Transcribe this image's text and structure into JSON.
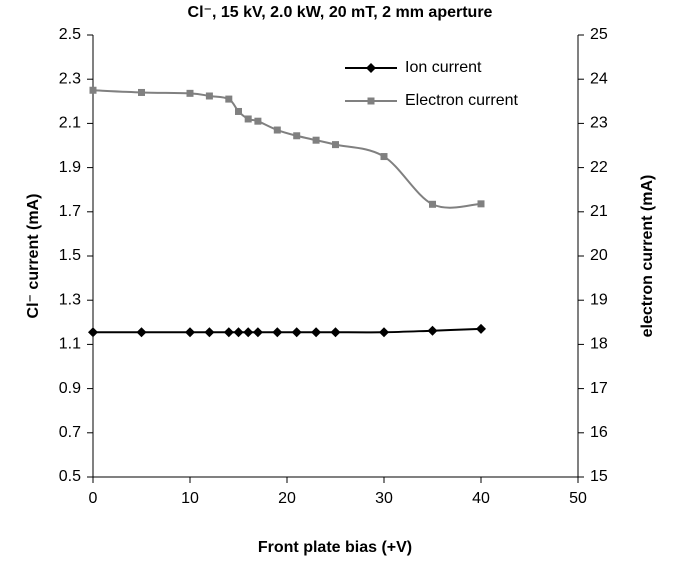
{
  "chart_data": {
    "type": "line",
    "title": "Cl⁻, 15 kV, 2.0 kW, 20 mT, 2 mm aperture",
    "x_label": "Front plate bias (+V)",
    "y_label": "Cl⁻ current (mA)",
    "y2_label": "electron current (mA)",
    "x": [
      0,
      5,
      10,
      12,
      14,
      15,
      16,
      17,
      19,
      21,
      23,
      25,
      30,
      35,
      40
    ],
    "series": [
      {
        "name": "Ion current",
        "color": "#000000",
        "marker": "diamond",
        "axis": "y",
        "values": [
          1.155,
          1.155,
          1.155,
          1.155,
          1.155,
          1.155,
          1.155,
          1.155,
          1.155,
          1.155,
          1.155,
          1.155,
          1.155,
          1.162,
          1.17
        ]
      },
      {
        "name": "Electron current",
        "color": "#808080",
        "marker": "square",
        "axis": "y2",
        "values": [
          23.75,
          23.7,
          23.68,
          23.62,
          23.55,
          23.27,
          23.1,
          23.05,
          22.85,
          22.72,
          22.62,
          22.52,
          22.25,
          21.17,
          21.18
        ]
      }
    ],
    "xlim": [
      0,
      50
    ],
    "xticks": [
      0,
      10,
      20,
      30,
      40,
      50
    ],
    "ylim": [
      0.5,
      2.5
    ],
    "yticks": [
      0.5,
      0.7,
      0.9,
      1.1,
      1.3,
      1.5,
      1.7,
      1.9,
      2.1,
      2.3,
      2.5
    ],
    "y2lim": [
      15,
      25
    ],
    "y2ticks": [
      15,
      16,
      17,
      18,
      19,
      20,
      21,
      22,
      23,
      24,
      25
    ],
    "legend": "upper right"
  }
}
